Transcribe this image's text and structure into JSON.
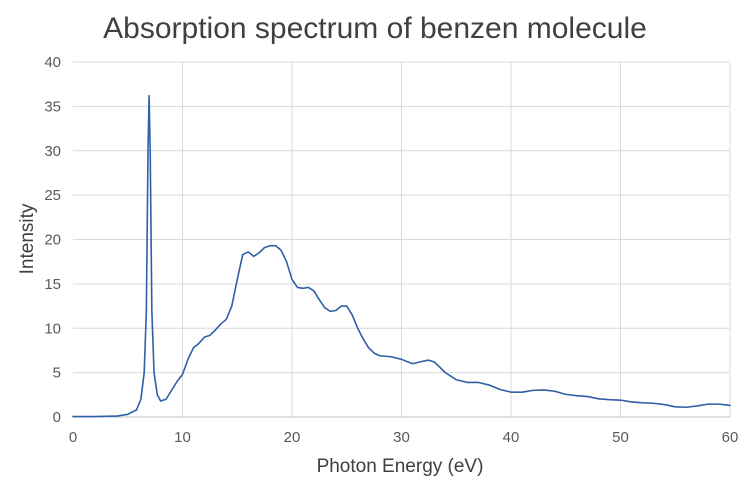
{
  "chart_data": {
    "type": "line",
    "title": "Absorption spectrum of benzen molecule",
    "xlabel": "Photon Energy (eV)",
    "ylabel": "Intensity",
    "xlim": [
      0,
      60
    ],
    "ylim": [
      0,
      40
    ],
    "xticks": [
      0,
      10,
      20,
      30,
      40,
      50,
      60
    ],
    "yticks": [
      0,
      5,
      10,
      15,
      20,
      25,
      30,
      35,
      40
    ],
    "grid": true,
    "legend": "none",
    "series": [
      {
        "color": "#2e5fa8",
        "points": [
          [
            0,
            0.05
          ],
          [
            2,
            0.05
          ],
          [
            4,
            0.1
          ],
          [
            5,
            0.3
          ],
          [
            5.8,
            0.8
          ],
          [
            6.2,
            2.0
          ],
          [
            6.5,
            5.0
          ],
          [
            6.7,
            12.0
          ],
          [
            6.85,
            30.0
          ],
          [
            6.95,
            36.2
          ],
          [
            7.05,
            30.0
          ],
          [
            7.2,
            12.0
          ],
          [
            7.4,
            5.0
          ],
          [
            7.7,
            2.5
          ],
          [
            8.0,
            1.8
          ],
          [
            8.5,
            2.0
          ],
          [
            9.0,
            3.0
          ],
          [
            9.5,
            4.0
          ],
          [
            10.0,
            4.8
          ],
          [
            10.5,
            6.5
          ],
          [
            11.0,
            7.8
          ],
          [
            11.5,
            8.3
          ],
          [
            12.0,
            9.0
          ],
          [
            12.5,
            9.2
          ],
          [
            13.0,
            9.8
          ],
          [
            13.5,
            10.5
          ],
          [
            14.0,
            11.0
          ],
          [
            14.5,
            12.5
          ],
          [
            15.0,
            15.5
          ],
          [
            15.5,
            18.3
          ],
          [
            16.0,
            18.6
          ],
          [
            16.5,
            18.1
          ],
          [
            17.0,
            18.5
          ],
          [
            17.5,
            19.1
          ],
          [
            18.0,
            19.3
          ],
          [
            18.5,
            19.3
          ],
          [
            19.0,
            18.8
          ],
          [
            19.5,
            17.5
          ],
          [
            20.0,
            15.5
          ],
          [
            20.5,
            14.6
          ],
          [
            21.0,
            14.5
          ],
          [
            21.5,
            14.6
          ],
          [
            22.0,
            14.2
          ],
          [
            22.5,
            13.2
          ],
          [
            23.0,
            12.3
          ],
          [
            23.5,
            11.9
          ],
          [
            24.0,
            12.0
          ],
          [
            24.5,
            12.5
          ],
          [
            25.0,
            12.5
          ],
          [
            25.5,
            11.5
          ],
          [
            26.0,
            10.0
          ],
          [
            26.5,
            8.8
          ],
          [
            27.0,
            7.8
          ],
          [
            27.5,
            7.2
          ],
          [
            28.0,
            6.9
          ],
          [
            29.0,
            6.8
          ],
          [
            30.0,
            6.5
          ],
          [
            31.0,
            6.0
          ],
          [
            32.0,
            6.3
          ],
          [
            32.5,
            6.4
          ],
          [
            33.0,
            6.2
          ],
          [
            34.0,
            5.0
          ],
          [
            35.0,
            4.2
          ],
          [
            36.0,
            3.9
          ],
          [
            37.0,
            3.9
          ],
          [
            38.0,
            3.6
          ],
          [
            39.0,
            3.1
          ],
          [
            40.0,
            2.8
          ],
          [
            41.0,
            2.8
          ],
          [
            42.0,
            3.0
          ],
          [
            43.0,
            3.05
          ],
          [
            44.0,
            2.9
          ],
          [
            45.0,
            2.55
          ],
          [
            46.0,
            2.4
          ],
          [
            47.0,
            2.3
          ],
          [
            48.0,
            2.05
          ],
          [
            49.0,
            1.95
          ],
          [
            50.0,
            1.9
          ],
          [
            51.0,
            1.7
          ],
          [
            52.0,
            1.6
          ],
          [
            53.0,
            1.55
          ],
          [
            54.0,
            1.4
          ],
          [
            55.0,
            1.15
          ],
          [
            56.0,
            1.1
          ],
          [
            57.0,
            1.25
          ],
          [
            58.0,
            1.45
          ],
          [
            59.0,
            1.45
          ],
          [
            60.0,
            1.3
          ]
        ]
      }
    ]
  }
}
